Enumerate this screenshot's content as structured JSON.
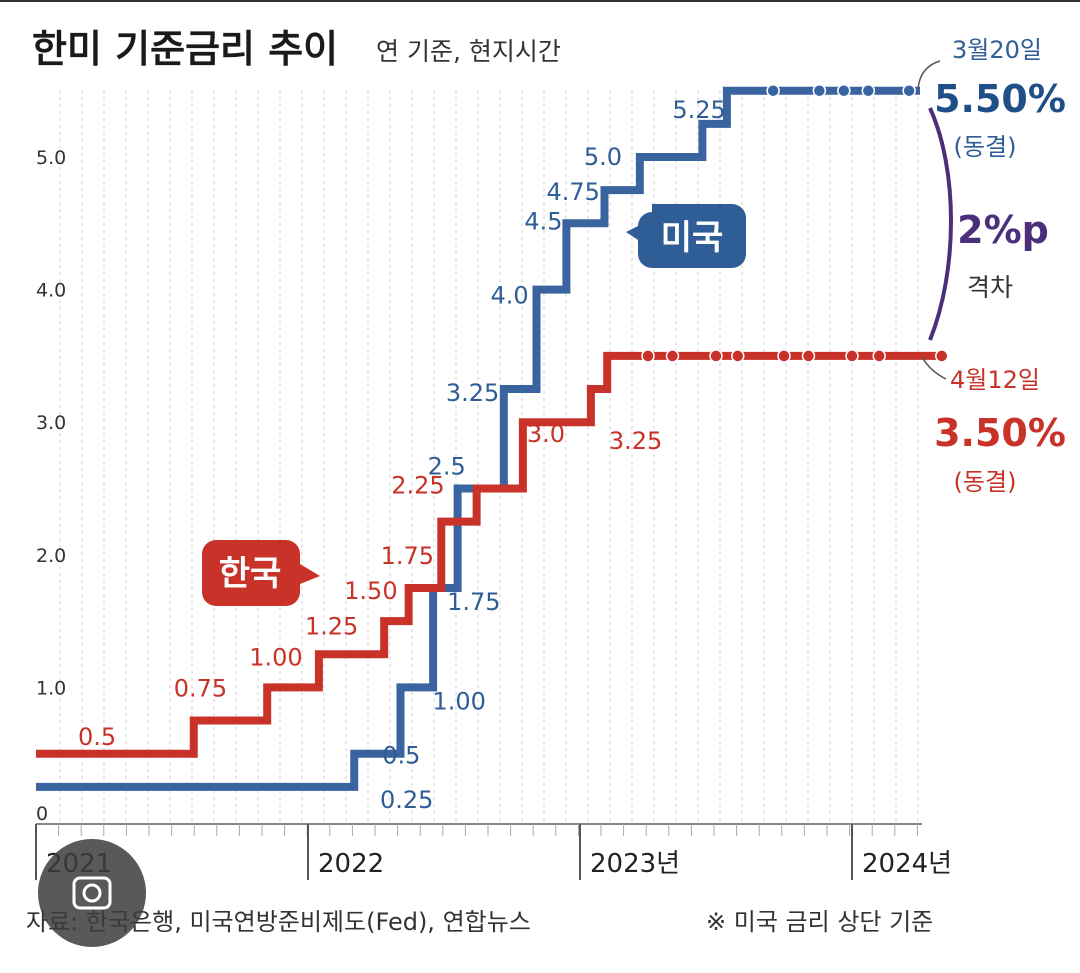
{
  "title": "한미 기준금리 추이",
  "subtitle": "연 기준, 현지시간",
  "chart_data": {
    "type": "line",
    "step": true,
    "yticks": [
      "0",
      "1.0",
      "2.0",
      "3.0",
      "4.0",
      "5.0"
    ],
    "xticks": [
      {
        "label": "2021",
        "t": 2021.0
      },
      {
        "label": "2022",
        "t": 2022.0
      },
      {
        "label": "2023년",
        "t": 2023.0
      },
      {
        "label": "2024년",
        "t": 2024.0
      }
    ],
    "series": [
      {
        "name": "미국",
        "color": "#3a64a0",
        "start": [
          2021.0,
          0.25
        ],
        "steps": [
          {
            "t": 2022.17,
            "v": 0.5,
            "label": "0.5"
          },
          {
            "t": 2022.34,
            "v": 1.0,
            "label": "1.00"
          },
          {
            "t": 2022.46,
            "v": 1.75,
            "label": "1.75"
          },
          {
            "t": 2022.55,
            "v": 2.5,
            "label": "2.5"
          },
          {
            "t": 2022.72,
            "v": 3.25,
            "label": "3.25"
          },
          {
            "t": 2022.84,
            "v": 4.0,
            "label": "4.0"
          },
          {
            "t": 2022.95,
            "v": 4.5,
            "label": "4.5"
          },
          {
            "t": 2023.09,
            "v": 4.75,
            "label": "4.75"
          },
          {
            "t": 2023.22,
            "v": 5.0,
            "label": "5.0"
          },
          {
            "t": 2023.45,
            "v": 5.25,
            "label": "5.25"
          },
          {
            "t": 2023.54,
            "v": 5.5
          }
        ],
        "end_t": 2024.25,
        "first_label": "0.25",
        "holds": [
          2023.71,
          2023.88,
          2023.97,
          2024.06,
          2024.21
        ],
        "end_label": {
          "date": "3월20일",
          "rate": "5.50%",
          "note": "(동결)"
        }
      },
      {
        "name": "한국",
        "color": "#c83228",
        "start": [
          2021.0,
          0.5
        ],
        "steps": [
          {
            "t": 2021.58,
            "v": 0.75,
            "label": "0.75"
          },
          {
            "t": 2021.85,
            "v": 1.0,
            "label": "1.00"
          },
          {
            "t": 2022.04,
            "v": 1.25,
            "label": "1.25"
          },
          {
            "t": 2022.28,
            "v": 1.5,
            "label": "1.50"
          },
          {
            "t": 2022.37,
            "v": 1.75,
            "label": "1.75"
          },
          {
            "t": 2022.49,
            "v": 2.25,
            "label": "2.25"
          },
          {
            "t": 2022.62,
            "v": 2.5
          },
          {
            "t": 2022.79,
            "v": 3.0,
            "label": "3.0"
          },
          {
            "t": 2023.04,
            "v": 3.25,
            "label": "3.25"
          },
          {
            "t": 2023.1,
            "v": 3.5
          }
        ],
        "end_t": 2024.33,
        "first_label": "0.5",
        "holds": [
          2023.25,
          2023.34,
          2023.5,
          2023.58,
          2023.75,
          2023.84,
          2024.0,
          2024.1,
          2024.33
        ],
        "end_label": {
          "date": "4월12일",
          "rate": "3.50%",
          "note": "(동결)"
        }
      }
    ],
    "gap": {
      "value": "2%p",
      "label": "격차"
    }
  },
  "bubbles": {
    "us": "미국",
    "kr": "한국"
  },
  "footer": {
    "source": "자료: 한국은행, 미국연방준비제도(Fed), 연합뉴스",
    "note": "※ 미국 금리 상단 기준"
  }
}
